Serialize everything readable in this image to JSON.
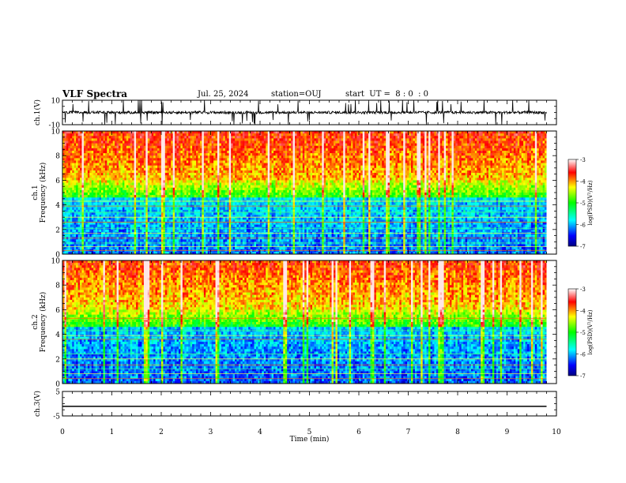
{
  "header": {
    "title": "VLF Spectra",
    "date": "Jul. 25, 2024",
    "station": "station=OUJ",
    "start": "start  UT =  8 : 0  : 0"
  },
  "chart_data": [
    {
      "type": "line",
      "panel": "ch1-waveform",
      "ylabel": "ch.1(V)",
      "ylim": [
        -10,
        10
      ],
      "yticks": [
        10,
        -10
      ],
      "xlim": [
        0,
        10
      ],
      "x_unit": "min",
      "baseline": 0,
      "description_series": "noisy waveform with impulsive spikes"
    },
    {
      "type": "heatmap",
      "panel": "ch1-spectrogram",
      "ylabel": "ch.1 Frequency (kHz)",
      "ylim": [
        0,
        10
      ],
      "yticks": [
        0,
        2,
        4,
        6,
        8,
        10
      ],
      "xlim": [
        0,
        10
      ],
      "colorbar": {
        "label": "log(PSD)(V²/Hz)",
        "range": [
          -7,
          -3
        ],
        "ticks": [
          -3,
          -4,
          -5,
          -6,
          -7
        ]
      }
    },
    {
      "type": "heatmap",
      "panel": "ch2-spectrogram",
      "ylabel": "ch.2 Frequency (kHz)",
      "ylim": [
        0,
        10
      ],
      "yticks": [
        0,
        2,
        4,
        6,
        8,
        10
      ],
      "xlim": [
        0,
        10
      ],
      "colorbar": {
        "label": "log(PSD)(V²/Hz)",
        "range": [
          -7,
          -3
        ],
        "ticks": [
          -3,
          -4,
          -5,
          -6,
          -7
        ]
      }
    },
    {
      "type": "line",
      "panel": "ch3-waveform",
      "ylabel": "ch.3(V)",
      "ylim": [
        -5,
        5
      ],
      "yticks": [
        5,
        -5
      ],
      "xlim": [
        0,
        10
      ],
      "series": [
        {
          "x": [
            0,
            9.8
          ],
          "y": [
            -1.1,
            -1.1
          ]
        }
      ]
    }
  ],
  "xaxis": {
    "label": "Time (min)",
    "ticks": [
      0,
      1,
      2,
      3,
      4,
      5,
      6,
      7,
      8,
      9,
      10
    ],
    "data_end": 9.8
  }
}
